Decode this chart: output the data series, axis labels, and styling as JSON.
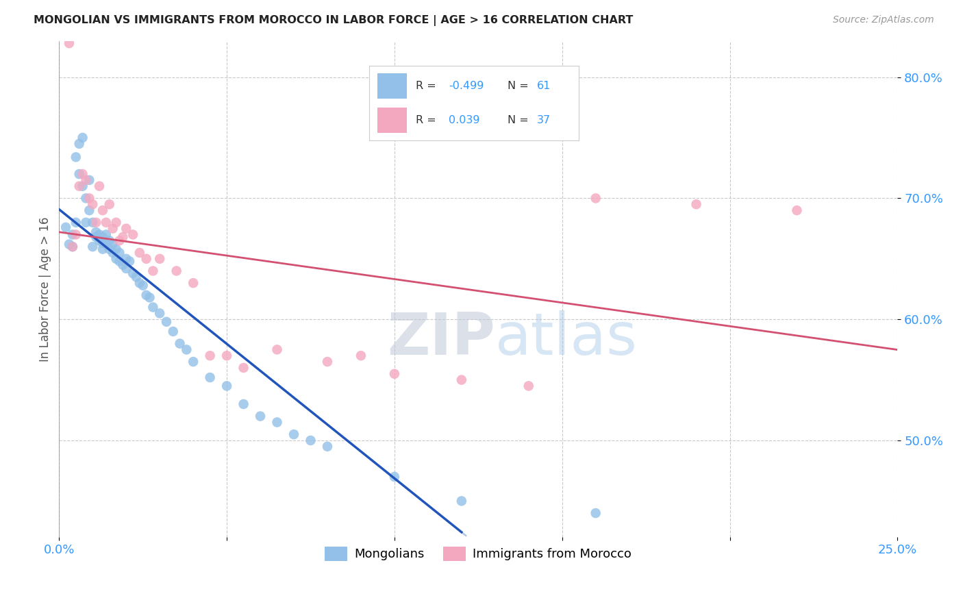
{
  "title": "MONGOLIAN VS IMMIGRANTS FROM MOROCCO IN LABOR FORCE | AGE > 16 CORRELATION CHART",
  "source": "Source: ZipAtlas.com",
  "ylabel": "In Labor Force | Age > 16",
  "xlim": [
    0.0,
    0.25
  ],
  "ylim": [
    0.42,
    0.83
  ],
  "yticks": [
    0.5,
    0.6,
    0.7,
    0.8
  ],
  "ytick_labels": [
    "50.0%",
    "60.0%",
    "70.0%",
    "80.0%"
  ],
  "mongolian_R": -0.499,
  "mongolian_N": 61,
  "morocco_R": 0.039,
  "morocco_N": 37,
  "mongolian_color": "#92c0e8",
  "morocco_color": "#f4a8bf",
  "mongolian_line_color": "#2255bb",
  "morocco_line_color": "#d45070",
  "mongolian_x": [
    0.002,
    0.003,
    0.004,
    0.004,
    0.005,
    0.005,
    0.006,
    0.006,
    0.007,
    0.007,
    0.008,
    0.008,
    0.009,
    0.009,
    0.01,
    0.01,
    0.011,
    0.011,
    0.012,
    0.012,
    0.013,
    0.013,
    0.013,
    0.014,
    0.014,
    0.015,
    0.015,
    0.016,
    0.016,
    0.017,
    0.017,
    0.018,
    0.018,
    0.019,
    0.02,
    0.02,
    0.021,
    0.022,
    0.023,
    0.024,
    0.025,
    0.026,
    0.027,
    0.028,
    0.03,
    0.032,
    0.034,
    0.036,
    0.038,
    0.04,
    0.045,
    0.05,
    0.055,
    0.06,
    0.065,
    0.07,
    0.075,
    0.08,
    0.1,
    0.12,
    0.16
  ],
  "mongolian_y": [
    0.676,
    0.662,
    0.66,
    0.67,
    0.68,
    0.734,
    0.72,
    0.745,
    0.71,
    0.75,
    0.68,
    0.7,
    0.69,
    0.715,
    0.66,
    0.68,
    0.672,
    0.668,
    0.67,
    0.665,
    0.658,
    0.663,
    0.668,
    0.662,
    0.67,
    0.658,
    0.665,
    0.655,
    0.662,
    0.65,
    0.658,
    0.648,
    0.655,
    0.645,
    0.65,
    0.642,
    0.648,
    0.638,
    0.635,
    0.63,
    0.628,
    0.62,
    0.618,
    0.61,
    0.605,
    0.598,
    0.59,
    0.58,
    0.575,
    0.565,
    0.552,
    0.545,
    0.53,
    0.52,
    0.515,
    0.505,
    0.5,
    0.495,
    0.47,
    0.45,
    0.44
  ],
  "morocco_x": [
    0.003,
    0.004,
    0.005,
    0.006,
    0.007,
    0.008,
    0.009,
    0.01,
    0.011,
    0.012,
    0.013,
    0.014,
    0.015,
    0.016,
    0.017,
    0.018,
    0.019,
    0.02,
    0.022,
    0.024,
    0.026,
    0.028,
    0.03,
    0.035,
    0.04,
    0.045,
    0.05,
    0.055,
    0.065,
    0.08,
    0.09,
    0.1,
    0.12,
    0.14,
    0.16,
    0.19,
    0.22
  ],
  "morocco_y": [
    0.828,
    0.66,
    0.67,
    0.71,
    0.72,
    0.715,
    0.7,
    0.695,
    0.68,
    0.71,
    0.69,
    0.68,
    0.695,
    0.675,
    0.68,
    0.665,
    0.668,
    0.675,
    0.67,
    0.655,
    0.65,
    0.64,
    0.65,
    0.64,
    0.63,
    0.57,
    0.57,
    0.56,
    0.575,
    0.565,
    0.57,
    0.555,
    0.55,
    0.545,
    0.7,
    0.695,
    0.69
  ],
  "watermark_zip": "ZIP",
  "watermark_atlas": "atlas",
  "background_color": "#ffffff",
  "grid_color": "#cccccc",
  "legend_r1": "R = -0.499",
  "legend_n1": "N =  61",
  "legend_r2": "R =  0.039",
  "legend_n2": "N =  37"
}
